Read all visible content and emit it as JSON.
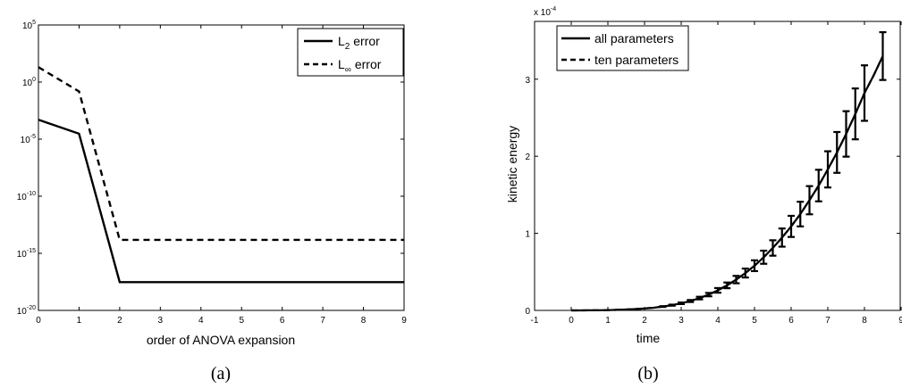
{
  "chart_data": [
    {
      "type": "line",
      "yscale": "log",
      "x": [
        0,
        1,
        2,
        3,
        4,
        5,
        6,
        7,
        8,
        9
      ],
      "series": [
        {
          "name": "L_2 error",
          "style": "solid",
          "values": [
            0.0005,
            3e-05,
            3e-18,
            3e-18,
            3e-18,
            3e-18,
            3e-18,
            3e-18,
            3e-18,
            3e-18
          ]
        },
        {
          "name": "L_∞ error",
          "style": "dashed",
          "values": [
            20,
            0.15,
            1.5e-14,
            1.5e-14,
            1.5e-14,
            1.5e-14,
            1.5e-14,
            1.5e-14,
            1.5e-14,
            1.5e-14
          ]
        }
      ],
      "xlim": [
        0,
        9
      ],
      "ylim_exp": [
        -20,
        5
      ],
      "xticks": [
        "0",
        "1",
        "2",
        "3",
        "4",
        "5",
        "6",
        "7",
        "8",
        "9"
      ],
      "xlabel": "order of ANOVA expansion",
      "ylabel": "",
      "legend_location": "top-right",
      "caption": "(a)"
    },
    {
      "type": "line",
      "y_multiplier_base": "x 10",
      "y_multiplier_exp": "-4",
      "x": [
        0,
        0.25,
        0.5,
        0.75,
        1.0,
        1.25,
        1.5,
        1.75,
        2.0,
        2.25,
        2.5,
        2.75,
        3.0,
        3.25,
        3.5,
        3.75,
        4.0,
        4.25,
        4.5,
        4.75,
        5.0,
        5.25,
        5.5,
        5.75,
        6.0,
        6.25,
        6.5,
        6.75,
        7.0,
        7.25,
        7.5,
        7.75,
        8.0,
        8.25,
        8.5
      ],
      "series": [
        {
          "name": "all parameters",
          "style": "solid",
          "values": [
            0,
            0.0002,
            0.001,
            0.002,
            0.004,
            0.007,
            0.011,
            0.017,
            0.025,
            0.035,
            0.05,
            0.068,
            0.092,
            0.122,
            0.16,
            0.205,
            0.26,
            0.325,
            0.4,
            0.485,
            0.58,
            0.69,
            0.81,
            0.945,
            1.09,
            1.25,
            1.43,
            1.62,
            1.83,
            2.05,
            2.29,
            2.55,
            2.82,
            3.05,
            3.3
          ]
        },
        {
          "name": "ten parameters",
          "style": "dashed",
          "values": [
            0,
            0.0002,
            0.001,
            0.002,
            0.004,
            0.007,
            0.011,
            0.017,
            0.025,
            0.035,
            0.05,
            0.068,
            0.092,
            0.122,
            0.16,
            0.205,
            0.26,
            0.325,
            0.4,
            0.485,
            0.58,
            0.69,
            0.81,
            0.945,
            1.09,
            1.25,
            1.43,
            1.62,
            1.83,
            2.05,
            2.29,
            2.55,
            2.82,
            3.05,
            3.3
          ]
        }
      ],
      "errorbars": {
        "x": [
          2.5,
          2.75,
          3.0,
          3.25,
          3.5,
          3.75,
          4.0,
          4.25,
          4.5,
          4.75,
          5.0,
          5.25,
          5.5,
          5.75,
          6.0,
          6.25,
          6.5,
          6.75,
          7.0,
          7.25,
          7.5,
          7.75,
          8.0,
          8.5
        ],
        "y": [
          0.05,
          0.068,
          0.092,
          0.122,
          0.16,
          0.205,
          0.26,
          0.325,
          0.4,
          0.485,
          0.58,
          0.69,
          0.81,
          0.945,
          1.09,
          1.25,
          1.43,
          1.62,
          1.83,
          2.05,
          2.29,
          2.55,
          2.82,
          3.3
        ],
        "half_width": [
          0.005,
          0.007,
          0.01,
          0.013,
          0.017,
          0.022,
          0.03,
          0.037,
          0.048,
          0.058,
          0.07,
          0.085,
          0.1,
          0.118,
          0.137,
          0.16,
          0.183,
          0.205,
          0.235,
          0.265,
          0.295,
          0.33,
          0.36,
          0.31
        ]
      },
      "xlim": [
        -1,
        9
      ],
      "ylim": [
        0,
        3.75
      ],
      "xticks": [
        "-1",
        "0",
        "1",
        "2",
        "3",
        "4",
        "5",
        "6",
        "7",
        "8",
        "9"
      ],
      "yticks": [
        "0",
        "1",
        "2",
        "3"
      ],
      "xlabel": "time",
      "ylabel": "kinetic energy",
      "legend_location": "top-left",
      "caption": "(b)"
    }
  ]
}
